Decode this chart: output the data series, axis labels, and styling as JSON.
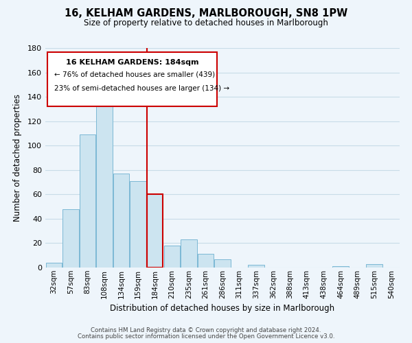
{
  "title": "16, KELHAM GARDENS, MARLBOROUGH, SN8 1PW",
  "subtitle": "Size of property relative to detached houses in Marlborough",
  "xlabel": "Distribution of detached houses by size in Marlborough",
  "ylabel": "Number of detached properties",
  "bar_labels": [
    "32sqm",
    "57sqm",
    "83sqm",
    "108sqm",
    "134sqm",
    "159sqm",
    "184sqm",
    "210sqm",
    "235sqm",
    "261sqm",
    "286sqm",
    "311sqm",
    "337sqm",
    "362sqm",
    "388sqm",
    "413sqm",
    "438sqm",
    "464sqm",
    "489sqm",
    "515sqm",
    "540sqm"
  ],
  "bar_values": [
    4,
    48,
    109,
    135,
    77,
    71,
    60,
    18,
    23,
    11,
    7,
    0,
    2,
    0,
    0,
    0,
    0,
    1,
    0,
    3,
    0
  ],
  "bar_color": "#cce4f0",
  "bar_edge_color": "#7bb8d4",
  "highlight_bar_index": 6,
  "highlight_line_color": "#cc0000",
  "ylim": [
    0,
    180
  ],
  "yticks": [
    0,
    20,
    40,
    60,
    80,
    100,
    120,
    140,
    160,
    180
  ],
  "annotation_title": "16 KELHAM GARDENS: 184sqm",
  "annotation_line1": "← 76% of detached houses are smaller (439)",
  "annotation_line2": "23% of semi-detached houses are larger (134) →",
  "annotation_box_color": "#ffffff",
  "annotation_box_edge": "#cc0000",
  "footer_line1": "Contains HM Land Registry data © Crown copyright and database right 2024.",
  "footer_line2": "Contains public sector information licensed under the Open Government Licence v3.0.",
  "background_color": "#eef5fb",
  "grid_color": "#c8dce8"
}
